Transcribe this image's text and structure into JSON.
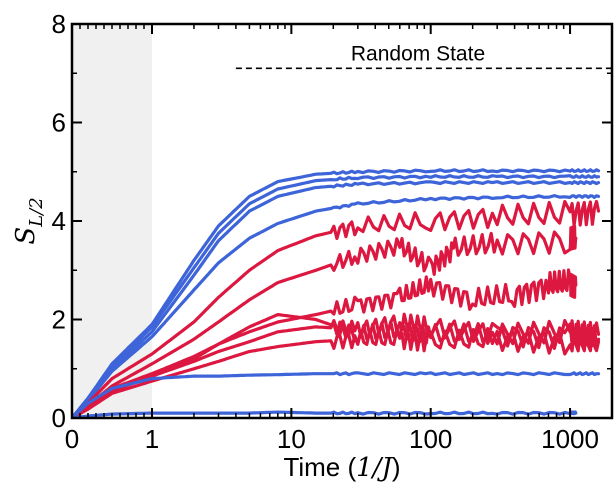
{
  "chart_data": {
    "type": "line",
    "xlabel": "Time (1/J)",
    "ylabel": "S_{L/2}",
    "xscale": "linear 0–1, log 1–2000",
    "xlim": [
      0,
      2000
    ],
    "ylim": [
      0,
      8
    ],
    "xticks": [
      "0",
      "1",
      "10",
      "100",
      "1000"
    ],
    "yticks": [
      "0",
      "2",
      "4",
      "6",
      "8"
    ],
    "shaded_region": [
      0,
      1
    ],
    "shaded_color": "#f0f0f0",
    "reference_line": {
      "label": "Random State",
      "y": 7.1,
      "x_start": 4,
      "style": "dashed",
      "color": "#000000"
    },
    "colors": {
      "blue": "#3d64d8",
      "red": "#dc1840"
    },
    "series": [
      {
        "color": "blue",
        "x": [
          0,
          0.2,
          0.5,
          1,
          2,
          3,
          5,
          8,
          15,
          30,
          100,
          300,
          1000,
          1600
        ],
        "y": [
          0,
          0.4,
          1.1,
          1.9,
          3.2,
          3.9,
          4.5,
          4.8,
          4.95,
          5.0,
          5.02,
          5.02,
          5.02,
          5.02
        ]
      },
      {
        "color": "blue",
        "x": [
          0,
          0.2,
          0.5,
          1,
          2,
          3,
          5,
          8,
          15,
          30,
          100,
          300,
          1000,
          1600
        ],
        "y": [
          0,
          0.4,
          1.05,
          1.85,
          3.05,
          3.75,
          4.35,
          4.65,
          4.82,
          4.88,
          4.9,
          4.9,
          4.9,
          4.9
        ]
      },
      {
        "color": "blue",
        "x": [
          0,
          0.2,
          0.5,
          1,
          2,
          3,
          5,
          8,
          15,
          30,
          100,
          300,
          1000,
          1600
        ],
        "y": [
          0,
          0.38,
          1.0,
          1.75,
          2.9,
          3.6,
          4.2,
          4.5,
          4.68,
          4.75,
          4.78,
          4.78,
          4.78,
          4.78
        ]
      },
      {
        "color": "blue",
        "x": [
          0,
          0.2,
          0.5,
          1,
          2,
          3,
          5,
          8,
          15,
          30,
          100,
          300,
          1000,
          1600
        ],
        "y": [
          0,
          0.35,
          0.95,
          1.65,
          2.6,
          3.15,
          3.65,
          3.95,
          4.2,
          4.35,
          4.45,
          4.48,
          4.5,
          4.5
        ]
      },
      {
        "color": "red",
        "x": [
          0,
          0.2,
          0.5,
          1,
          2,
          3,
          5,
          8,
          15,
          30,
          100,
          300,
          1000,
          1600
        ],
        "y": [
          0,
          0.3,
          0.8,
          1.3,
          1.95,
          2.45,
          3.0,
          3.4,
          3.7,
          3.9,
          4.0,
          4.1,
          4.15,
          4.2
        ]
      },
      {
        "color": "red",
        "x": [
          0,
          0.2,
          0.5,
          1,
          2,
          3,
          5,
          8,
          15,
          30,
          60,
          100,
          150,
          300,
          1000,
          1100
        ],
        "y": [
          0,
          0.25,
          0.65,
          1.1,
          1.6,
          1.95,
          2.4,
          2.75,
          3.0,
          3.3,
          3.5,
          3.05,
          3.45,
          3.55,
          3.6,
          3.65
        ]
      },
      {
        "color": "red",
        "x": [
          0,
          0.2,
          0.5,
          1,
          2,
          3,
          5,
          8,
          15,
          30,
          60,
          100,
          200,
          400,
          700,
          1000,
          1100
        ],
        "y": [
          0,
          0.25,
          0.6,
          0.9,
          1.25,
          1.5,
          1.75,
          1.95,
          2.1,
          2.3,
          2.45,
          2.7,
          2.4,
          2.5,
          2.7,
          2.75,
          2.7
        ]
      },
      {
        "color": "red",
        "x": [
          0,
          0.2,
          0.5,
          1,
          2,
          3,
          5,
          8,
          15,
          30,
          60,
          100,
          300,
          1000,
          1600
        ],
        "y": [
          0,
          0.2,
          0.55,
          0.85,
          1.15,
          1.35,
          1.55,
          1.75,
          1.85,
          1.8,
          1.95,
          1.85,
          1.7,
          1.75,
          1.7
        ]
      },
      {
        "color": "red",
        "x": [
          0,
          0.2,
          0.5,
          1,
          2,
          3,
          5,
          8,
          15,
          30,
          60,
          100,
          300,
          1000,
          1600
        ],
        "y": [
          0,
          0.2,
          0.55,
          0.85,
          1.2,
          1.5,
          1.85,
          2.1,
          2.0,
          1.7,
          1.8,
          1.7,
          1.7,
          1.65,
          1.6
        ]
      },
      {
        "color": "red",
        "x": [
          0,
          0.2,
          0.5,
          1,
          2,
          3,
          5,
          8,
          15,
          30,
          60,
          100,
          300,
          1000,
          1600
        ],
        "y": [
          0,
          0.18,
          0.5,
          0.75,
          1.0,
          1.15,
          1.35,
          1.45,
          1.55,
          1.6,
          1.6,
          1.55,
          1.6,
          1.55,
          1.55
        ]
      },
      {
        "color": "blue",
        "x": [
          0,
          0.2,
          0.5,
          1,
          2,
          3,
          5,
          8,
          15,
          30,
          100,
          300,
          1000,
          1600
        ],
        "y": [
          0,
          0.3,
          0.6,
          0.8,
          0.85,
          0.85,
          0.87,
          0.88,
          0.9,
          0.9,
          0.9,
          0.9,
          0.9,
          0.9
        ]
      },
      {
        "color": "blue",
        "x": [
          0,
          0.2,
          0.5,
          1,
          2,
          3,
          5,
          8,
          15,
          30,
          100,
          300,
          1000,
          1100
        ],
        "y": [
          0,
          0.04,
          0.08,
          0.1,
          0.1,
          0.1,
          0.1,
          0.12,
          0.1,
          0.1,
          0.1,
          0.1,
          0.1,
          0.1
        ]
      }
    ]
  }
}
